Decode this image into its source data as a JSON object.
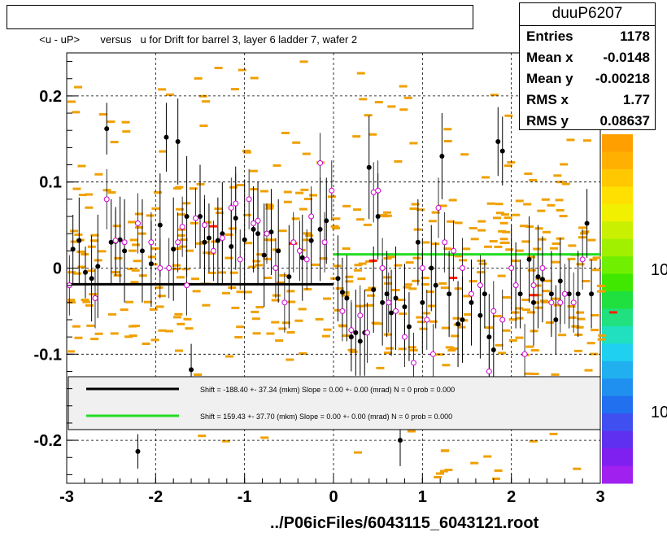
{
  "title": "<u - uP>       versus   u for Drift for barrel 3, layer 6 ladder 7, wafer 2",
  "stats": {
    "name": "duuP6207",
    "rows": [
      {
        "key": "Entries",
        "value": "1178"
      },
      {
        "key": "Mean x",
        "value": "-0.0148"
      },
      {
        "key": "Mean y",
        "value": "-0.00218"
      },
      {
        "key": "RMS x",
        "value": "1.77"
      },
      {
        "key": "RMS y",
        "value": "0.08637"
      }
    ]
  },
  "footer": "../P06icFiles/6043115_6043121.root",
  "colors": {
    "histogram": "#f0a000",
    "marker_black": "#000000",
    "marker_open": "#d000d0",
    "fit_black": "#000000",
    "fit_green": "#22dd22",
    "red_cell": "#ff2000"
  },
  "chart_data": {
    "type": "scatter",
    "xlim": [
      -3,
      3
    ],
    "ylim": [
      -0.25,
      0.25
    ],
    "x_ticks": [
      "-3",
      "-2",
      "-1",
      "0",
      "1",
      "2",
      "3"
    ],
    "y_ticks": [
      "-0.2",
      "-0.1",
      "0",
      "0.1",
      "0.2"
    ],
    "colorbar_labels": [
      "10",
      "10"
    ],
    "grid": true,
    "legend": [
      {
        "text": "Shift =  -188.40 +- 37.34 (mkm) Slope =     0.00 +- 0.00 (mrad)  N = 0 prob = 0.000",
        "color": "#000000"
      },
      {
        "text": "Shift =   159.43 +- 37.70 (mkm) Slope =     0.00 +- 0.00 (mrad)  N = 0 prob = 0.000",
        "color": "#22dd22"
      }
    ],
    "fit_lines": [
      {
        "x": [
          -3,
          0
        ],
        "y": [
          -0.0188,
          -0.0188
        ],
        "color": "#000000"
      },
      {
        "x": [
          0,
          3
        ],
        "y": [
          0.0159,
          0.0159
        ],
        "color": "#22dd22"
      }
    ],
    "black_points": [
      [
        -2.93,
        0.022,
        0.04
      ],
      [
        -2.86,
        0.032,
        0.05
      ],
      [
        -2.79,
        -0.005,
        0.03
      ],
      [
        -2.72,
        -0.012,
        0.05
      ],
      [
        -2.65,
        0.002,
        0.06
      ],
      [
        -2.55,
        0.162,
        0.03
      ],
      [
        -2.5,
        0.03,
        0.05
      ],
      [
        -2.45,
        0.031,
        0.04
      ],
      [
        -2.4,
        0.033,
        0.05
      ],
      [
        -2.35,
        0.02,
        0.06
      ],
      [
        -2.2,
        -0.213,
        0.02
      ],
      [
        -2.15,
        0.02,
        0.06
      ],
      [
        -2.05,
        0.005,
        0.05
      ],
      [
        -1.95,
        0.05,
        0.06
      ],
      [
        -1.88,
        0.152,
        0.04
      ],
      [
        -1.8,
        0.022,
        0.06
      ],
      [
        -1.75,
        0.147,
        0.05
      ],
      [
        -1.65,
        0.06,
        0.07
      ],
      [
        -1.6,
        -0.118,
        0.03
      ],
      [
        -1.5,
        0.06,
        0.06
      ],
      [
        -1.45,
        0.03,
        0.05
      ],
      [
        -1.4,
        0.035,
        0.04
      ],
      [
        -1.3,
        0.032,
        0.05
      ],
      [
        -1.25,
        0.04,
        0.06
      ],
      [
        -1.15,
        0.025,
        0.05
      ],
      [
        -1.1,
        0.058,
        0.06
      ],
      [
        -1.0,
        0.033,
        0.07
      ],
      [
        -0.9,
        0.045,
        0.05
      ],
      [
        -0.85,
        0.04,
        0.06
      ],
      [
        -0.78,
        0.015,
        0.06
      ],
      [
        -0.7,
        0.042,
        0.05
      ],
      [
        -0.62,
        0.02,
        0.06
      ],
      [
        -0.5,
        -0.01,
        0.06
      ],
      [
        -0.35,
        0.012,
        0.05
      ],
      [
        -0.25,
        0.032,
        0.05
      ],
      [
        -0.15,
        0.045,
        0.06
      ],
      [
        -0.08,
        0.055,
        0.05
      ],
      [
        0.05,
        -0.012,
        0.05
      ],
      [
        0.1,
        -0.028,
        0.04
      ],
      [
        0.15,
        -0.035,
        0.05
      ],
      [
        0.2,
        -0.08,
        0.04
      ],
      [
        0.25,
        -0.075,
        0.05
      ],
      [
        0.3,
        -0.085,
        0.04
      ],
      [
        0.35,
        -0.075,
        0.05
      ],
      [
        0.4,
        0.117,
        0.06
      ],
      [
        0.45,
        -0.025,
        0.05
      ],
      [
        0.5,
        0.06,
        0.05
      ],
      [
        0.55,
        -0.04,
        0.05
      ],
      [
        0.6,
        -0.03,
        0.05
      ],
      [
        0.65,
        -0.052,
        0.05
      ],
      [
        0.7,
        -0.035,
        0.06
      ],
      [
        0.75,
        -0.2,
        0.03
      ],
      [
        0.8,
        -0.045,
        0.05
      ],
      [
        0.85,
        -0.068,
        0.04
      ],
      [
        0.95,
        0.03,
        0.05
      ],
      [
        1.0,
        -0.04,
        0.06
      ],
      [
        1.1,
        0.0,
        0.05
      ],
      [
        1.15,
        -0.02,
        0.05
      ],
      [
        1.22,
        0.13,
        0.05
      ],
      [
        1.3,
        -0.03,
        0.05
      ],
      [
        1.4,
        -0.065,
        0.05
      ],
      [
        1.45,
        -0.06,
        0.05
      ],
      [
        1.55,
        -0.04,
        0.05
      ],
      [
        1.65,
        -0.055,
        0.05
      ],
      [
        1.7,
        -0.03,
        0.04
      ],
      [
        1.75,
        -0.08,
        0.05
      ],
      [
        1.8,
        -0.095,
        0.04
      ],
      [
        1.85,
        0.147,
        0.04
      ],
      [
        1.9,
        0.136,
        0.04
      ],
      [
        2.0,
        0.0,
        0.05
      ],
      [
        2.05,
        -0.02,
        0.05
      ],
      [
        2.1,
        -0.03,
        0.04
      ],
      [
        2.2,
        0.01,
        0.05
      ],
      [
        2.25,
        -0.04,
        0.05
      ],
      [
        2.3,
        -0.01,
        0.06
      ],
      [
        2.35,
        -0.013,
        0.05
      ],
      [
        2.45,
        -0.03,
        0.05
      ],
      [
        2.5,
        -0.06,
        0.04
      ],
      [
        2.55,
        -0.015,
        0.05
      ],
      [
        2.65,
        -0.03,
        0.04
      ],
      [
        2.75,
        -0.03,
        0.05
      ],
      [
        2.85,
        0.052,
        0.04
      ],
      [
        2.9,
        -0.03,
        0.04
      ]
    ],
    "open_points": [
      [
        -2.97,
        -0.02
      ],
      [
        -2.68,
        -0.035
      ],
      [
        -2.55,
        0.08
      ],
      [
        -2.45,
        0.032
      ],
      [
        -2.35,
        0.03
      ],
      [
        -2.2,
        0.052
      ],
      [
        -2.05,
        0.03
      ],
      [
        -1.95,
        0.0
      ],
      [
        -1.85,
        0.0
      ],
      [
        -1.75,
        0.03
      ],
      [
        -1.7,
        0.048
      ],
      [
        -1.65,
        -0.02
      ],
      [
        -1.55,
        0.058
      ],
      [
        -1.45,
        0.05
      ],
      [
        -1.35,
        0.02
      ],
      [
        -1.25,
        0.035
      ],
      [
        -1.15,
        0.07
      ],
      [
        -1.1,
        0.075
      ],
      [
        -1.05,
        0.01
      ],
      [
        -0.95,
        0.08
      ],
      [
        -0.9,
        0.052
      ],
      [
        -0.85,
        0.055
      ],
      [
        -0.75,
        0.04
      ],
      [
        -0.65,
        0.0
      ],
      [
        -0.55,
        -0.04
      ],
      [
        -0.45,
        0.03
      ],
      [
        -0.38,
        0.02
      ],
      [
        -0.3,
        0.01
      ],
      [
        -0.25,
        0.06
      ],
      [
        -0.15,
        0.122
      ],
      [
        -0.1,
        0.03
      ],
      [
        -0.02,
        0.09
      ],
      [
        0.1,
        -0.05
      ],
      [
        0.2,
        -0.072
      ],
      [
        0.3,
        -0.055
      ],
      [
        0.38,
        -0.075
      ],
      [
        0.45,
        0.088
      ],
      [
        0.5,
        0.09
      ],
      [
        0.55,
        0.0
      ],
      [
        0.62,
        -0.04
      ],
      [
        0.7,
        -0.05
      ],
      [
        0.8,
        -0.08
      ],
      [
        0.9,
        -0.11
      ],
      [
        1.0,
        0.0
      ],
      [
        1.05,
        -0.06
      ],
      [
        1.12,
        -0.1
      ],
      [
        1.18,
        0.07
      ],
      [
        1.25,
        0.03
      ],
      [
        1.35,
        0.02
      ],
      [
        1.45,
        0.0
      ],
      [
        1.55,
        -0.03
      ],
      [
        1.65,
        -0.02
      ],
      [
        1.75,
        -0.12
      ],
      [
        1.8,
        -0.05
      ],
      [
        1.9,
        -0.06
      ],
      [
        2.0,
        0.0
      ],
      [
        2.05,
        -0.02
      ],
      [
        2.15,
        -0.1
      ],
      [
        2.25,
        -0.02
      ],
      [
        2.35,
        0.0
      ],
      [
        2.45,
        -0.04
      ],
      [
        2.55,
        -0.04
      ],
      [
        2.6,
        -0.03
      ],
      [
        2.7,
        -0.04
      ],
      [
        2.8,
        0.01
      ]
    ]
  }
}
